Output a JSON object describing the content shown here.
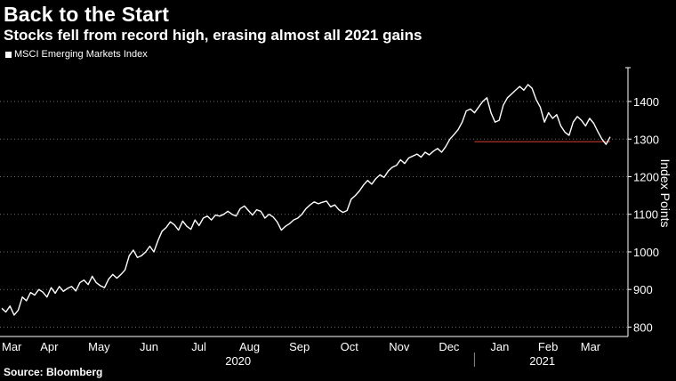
{
  "title": "Back to the Start",
  "subtitle": "Stocks fell from record high, erasing almost all 2021 gains",
  "source": "Source: Bloomberg",
  "colors": {
    "background": "#000000",
    "line": "#ffffff",
    "reference_line": "#c0392b",
    "grid": "#6b6b6b"
  },
  "chart_data": {
    "type": "line",
    "legend": "MSCI Emerging Markets Index",
    "legend_position": "top-left",
    "ylabel": "Index Points",
    "y_axis_side": "right",
    "ylim": [
      775,
      1490
    ],
    "yticks": [
      800,
      900,
      1000,
      1100,
      1200,
      1300,
      1400
    ],
    "ytick_labels": [
      "800",
      "900",
      "1000",
      "1100",
      "1200",
      "1300",
      "1400"
    ],
    "grid": "horizontal dotted",
    "month_labels": [
      "Mar",
      "Apr",
      "May",
      "Jun",
      "Jul",
      "Aug",
      "Sep",
      "Oct",
      "Nov",
      "Dec",
      "Jan",
      "Feb",
      "Mar"
    ],
    "year_labels": [
      "2020",
      "2021"
    ],
    "reference_value": 1293,
    "series": [
      {
        "name": "MSCI Emerging Markets Index",
        "x_start": "2020-03-18",
        "x_end": "2021-03-25",
        "values": [
          850,
          840,
          856,
          832,
          845,
          880,
          870,
          892,
          885,
          900,
          893,
          880,
          905,
          890,
          908,
          895,
          903,
          908,
          896,
          918,
          925,
          913,
          935,
          918,
          910,
          905,
          928,
          940,
          930,
          940,
          952,
          990,
          1005,
          985,
          990,
          1000,
          1015,
          1000,
          1030,
          1055,
          1065,
          1080,
          1072,
          1058,
          1082,
          1068,
          1060,
          1085,
          1070,
          1090,
          1095,
          1085,
          1098,
          1095,
          1100,
          1108,
          1100,
          1095,
          1115,
          1122,
          1110,
          1098,
          1112,
          1108,
          1090,
          1100,
          1093,
          1080,
          1058,
          1068,
          1075,
          1085,
          1090,
          1100,
          1115,
          1125,
          1133,
          1128,
          1132,
          1135,
          1120,
          1125,
          1112,
          1105,
          1110,
          1140,
          1150,
          1162,
          1178,
          1190,
          1180,
          1195,
          1205,
          1198,
          1215,
          1225,
          1230,
          1245,
          1235,
          1250,
          1255,
          1260,
          1252,
          1265,
          1258,
          1268,
          1275,
          1265,
          1280,
          1300,
          1312,
          1325,
          1345,
          1375,
          1380,
          1370,
          1385,
          1400,
          1410,
          1370,
          1345,
          1350,
          1390,
          1410,
          1420,
          1430,
          1440,
          1430,
          1445,
          1435,
          1405,
          1385,
          1345,
          1370,
          1355,
          1365,
          1335,
          1318,
          1310,
          1345,
          1360,
          1350,
          1335,
          1355,
          1342,
          1320,
          1300,
          1286,
          1306
        ]
      }
    ]
  }
}
